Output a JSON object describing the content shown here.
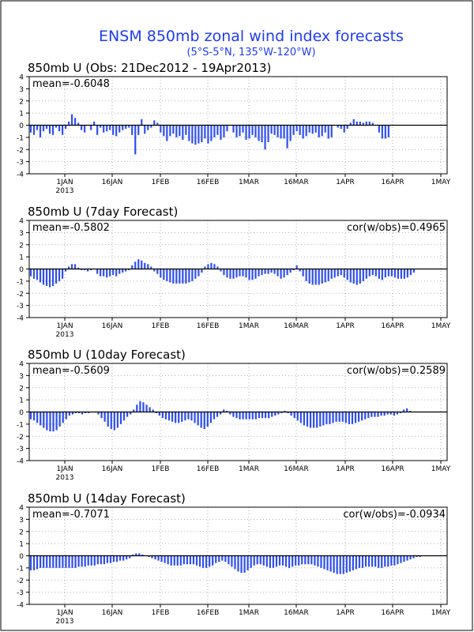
{
  "header": {
    "title": "ENSM 850mb zonal wind index forecasts",
    "subtitle": "(5°S-5°N, 135°W-120°W)"
  },
  "colors": {
    "bar": "#2f4ff0",
    "title": "#1f3cf0",
    "grid": "#9a9a9a",
    "frame": "#000000"
  },
  "x_ticks": [
    "1JAN",
    "16JAN",
    "1FEB",
    "16FEB",
    "1MAR",
    "16MAR",
    "1APR",
    "16APR",
    "1MAY"
  ],
  "x_year_label": "2013",
  "chart_data": [
    {
      "type": "bar",
      "title": "850mb U (Obs: 21Dec2012 - 19Apr2013)",
      "mean_text": "mean=-0.6048",
      "cor_text": "",
      "ylim": [
        -4,
        4
      ],
      "y_ticks": [
        "4",
        "3",
        "2",
        "1",
        "0",
        "-1",
        "-2",
        "-3",
        "-4"
      ],
      "x_start": "21Dec2012",
      "x_end": "1May2013",
      "grid": true,
      "values": [
        -0.6,
        -0.8,
        -0.4,
        -1.0,
        -0.5,
        -0.3,
        -0.7,
        -0.8,
        -0.2,
        -0.5,
        -0.8,
        -0.3,
        0.3,
        0.9,
        0.6,
        0.2,
        -0.4,
        -0.6,
        0.0,
        -0.4,
        0.3,
        -0.8,
        -0.2,
        -0.6,
        -0.5,
        -0.4,
        -0.8,
        -0.9,
        -0.6,
        -0.4,
        -0.3,
        -0.2,
        -0.8,
        -2.4,
        -0.8,
        0.5,
        -0.7,
        -0.4,
        -0.2,
        0.4,
        0.2,
        -0.6,
        -0.9,
        -1.3,
        -0.9,
        -0.7,
        -1.0,
        -0.9,
        -1.2,
        -0.8,
        -1.3,
        -1.5,
        -1.6,
        -1.5,
        -1.4,
        -1.1,
        -1.5,
        -1.3,
        -1.0,
        -0.8,
        -1.2,
        -1.0,
        -0.5,
        0.0,
        -0.6,
        -1.0,
        -0.9,
        -0.6,
        -1.2,
        -1.1,
        -0.8,
        -1.0,
        -1.3,
        -1.4,
        -2.0,
        -1.4,
        -0.7,
        -0.8,
        -1.0,
        -1.1,
        -1.1,
        -1.9,
        -1.3,
        -0.8,
        -0.5,
        -0.8,
        -1.1,
        -0.9,
        -0.6,
        -0.7,
        -0.6,
        -1.0,
        -0.9,
        -0.6,
        -1.1,
        -1.0,
        0.0,
        -0.2,
        -0.3,
        -0.6,
        -0.3,
        0.2,
        0.5,
        0.3,
        0.3,
        0.2,
        0.3,
        0.3,
        0.2,
        0.0,
        -0.6,
        -1.1,
        -1.1,
        -1.0,
        0.0,
        0.0,
        0.0,
        0.0,
        0.0,
        0.0,
        0.0,
        0.0,
        0.0,
        0.0,
        0.0,
        0.0,
        0.0,
        0.0,
        0.0,
        0.0,
        0.0,
        0.0
      ]
    },
    {
      "type": "bar",
      "title": "850mb U (7day Forecast)",
      "mean_text": "mean=-0.5802",
      "cor_text": "cor(w/obs)=0.4965",
      "ylim": [
        -4,
        4
      ],
      "y_ticks": [
        "4",
        "3",
        "2",
        "1",
        "0",
        "-1",
        "-2",
        "-3",
        "-4"
      ],
      "x_start": "21Dec2012",
      "x_end": "1May2013",
      "grid": true,
      "values": [
        -0.6,
        -0.8,
        -0.9,
        -1.1,
        -1.3,
        -1.4,
        -1.5,
        -1.4,
        -1.2,
        -1.0,
        -0.8,
        -0.2,
        0.2,
        0.4,
        0.4,
        0.1,
        -0.1,
        -0.1,
        -0.2,
        -0.1,
        0.0,
        -0.4,
        -0.6,
        -0.6,
        -0.7,
        -0.6,
        -0.5,
        -0.6,
        -0.4,
        -0.3,
        -0.2,
        -0.1,
        0.3,
        0.6,
        0.8,
        0.7,
        0.5,
        0.4,
        0.2,
        -0.2,
        -0.4,
        -0.7,
        -0.9,
        -1.0,
        -1.1,
        -1.2,
        -1.2,
        -1.2,
        -1.2,
        -1.2,
        -1.1,
        -1.0,
        -0.8,
        -0.6,
        -0.3,
        0.2,
        0.4,
        0.5,
        0.4,
        0.2,
        -0.2,
        -0.5,
        -0.7,
        -0.8,
        -0.8,
        -0.7,
        -0.6,
        -0.6,
        -0.7,
        -0.9,
        -0.9,
        -0.8,
        -0.6,
        -0.5,
        -0.4,
        -0.4,
        -0.3,
        -0.4,
        -0.6,
        -0.8,
        -0.7,
        -0.5,
        -0.3,
        -0.1,
        0.3,
        -0.2,
        -0.6,
        -1.0,
        -1.2,
        -1.3,
        -1.3,
        -1.3,
        -1.2,
        -1.1,
        -1.0,
        -0.8,
        -0.7,
        -0.6,
        -0.5,
        -0.7,
        -0.9,
        -1.1,
        -1.2,
        -1.3,
        -1.2,
        -1.0,
        -0.8,
        -0.6,
        -0.5,
        -0.6,
        -0.8,
        -0.9,
        -0.7,
        -0.6,
        -0.6,
        -0.7,
        -0.8,
        -0.8,
        -0.8,
        -0.7,
        -0.5,
        -0.3,
        0.0,
        0.0,
        0.0,
        0.0,
        0.0,
        0.0,
        0.0,
        0.0,
        0.0,
        0.0
      ]
    },
    {
      "type": "bar",
      "title": "850mb U (10day Forecast)",
      "mean_text": "mean=-0.5609",
      "cor_text": "cor(w/obs)=0.2589",
      "ylim": [
        -4,
        4
      ],
      "y_ticks": [
        "4",
        "3",
        "2",
        "1",
        "0",
        "-1",
        "-2",
        "-3",
        "-4"
      ],
      "x_start": "21Dec2012",
      "x_end": "1May2013",
      "grid": true,
      "values": [
        -0.6,
        -0.7,
        -0.9,
        -1.1,
        -1.3,
        -1.5,
        -1.6,
        -1.6,
        -1.5,
        -1.2,
        -0.9,
        -0.6,
        -0.3,
        -0.2,
        -0.1,
        -0.1,
        -0.2,
        -0.1,
        -0.1,
        0.0,
        0.0,
        -0.2,
        -0.5,
        -0.8,
        -1.2,
        -1.4,
        -1.5,
        -1.3,
        -1.0,
        -0.7,
        -0.4,
        -0.2,
        0.2,
        0.6,
        0.9,
        0.8,
        0.6,
        0.4,
        0.2,
        -0.1,
        -0.3,
        -0.5,
        -0.6,
        -0.7,
        -0.8,
        -0.9,
        -0.9,
        -0.8,
        -0.7,
        -0.6,
        -0.7,
        -0.9,
        -1.1,
        -1.3,
        -1.4,
        -1.2,
        -0.9,
        -0.6,
        -0.4,
        -0.2,
        0.2,
        0.1,
        -0.2,
        -0.4,
        -0.5,
        -0.6,
        -0.6,
        -0.6,
        -0.6,
        -0.6,
        -0.6,
        -0.5,
        -0.5,
        -0.5,
        -0.5,
        -0.4,
        -0.3,
        -0.2,
        -0.1,
        0.1,
        -0.1,
        -0.3,
        -0.5,
        -0.7,
        -0.9,
        -1.1,
        -1.2,
        -1.3,
        -1.3,
        -1.3,
        -1.2,
        -1.1,
        -1.0,
        -1.0,
        -0.9,
        -0.8,
        -0.8,
        -0.8,
        -0.9,
        -1.0,
        -1.0,
        -0.9,
        -0.8,
        -0.7,
        -0.6,
        -0.5,
        -0.4,
        -0.4,
        -0.4,
        -0.3,
        -0.3,
        -0.2,
        -0.2,
        -0.3,
        -0.2,
        -0.1,
        0.2,
        0.3,
        0.1,
        0.0,
        0.0,
        0.0,
        0.0,
        0.0,
        0.0,
        0.0,
        0.0,
        0.0,
        0.0,
        0.0
      ]
    },
    {
      "type": "bar",
      "title": "850mb U (14day Forecast)",
      "mean_text": "mean=-0.7071",
      "cor_text": "cor(w/obs)=-0.0934",
      "ylim": [
        -4,
        4
      ],
      "y_ticks": [
        "4",
        "3",
        "2",
        "1",
        "0",
        "-1",
        "-2",
        "-3",
        "-4"
      ],
      "x_start": "21Dec2012",
      "x_end": "1May2013",
      "grid": true,
      "values": [
        -1.2,
        -1.2,
        -1.1,
        -1.0,
        -1.0,
        -1.0,
        -1.0,
        -1.0,
        -1.0,
        -1.0,
        -1.0,
        -1.0,
        -1.0,
        -1.0,
        -1.0,
        -0.9,
        -0.9,
        -0.9,
        -0.8,
        -0.8,
        -0.8,
        -0.7,
        -0.7,
        -0.7,
        -0.6,
        -0.6,
        -0.5,
        -0.5,
        -0.4,
        -0.4,
        -0.3,
        -0.2,
        0.1,
        0.2,
        0.2,
        0.1,
        0.0,
        -0.1,
        -0.2,
        -0.3,
        -0.4,
        -0.5,
        -0.6,
        -0.7,
        -0.8,
        -0.8,
        -0.8,
        -0.8,
        -0.7,
        -0.7,
        -0.7,
        -0.7,
        -0.8,
        -0.9,
        -1.0,
        -1.0,
        -0.9,
        -0.8,
        -0.6,
        -0.5,
        -0.4,
        -0.5,
        -0.7,
        -0.9,
        -1.1,
        -1.3,
        -1.4,
        -1.4,
        -1.2,
        -1.0,
        -0.8,
        -0.7,
        -0.7,
        -0.8,
        -0.9,
        -1.0,
        -1.0,
        -0.9,
        -0.8,
        -0.8,
        -0.9,
        -1.0,
        -0.9,
        -0.8,
        -0.8,
        -0.7,
        -0.7,
        -0.7,
        -0.7,
        -0.8,
        -0.9,
        -1.0,
        -1.1,
        -1.2,
        -1.3,
        -1.4,
        -1.5,
        -1.5,
        -1.5,
        -1.4,
        -1.3,
        -1.2,
        -1.1,
        -1.0,
        -1.0,
        -0.9,
        -0.9,
        -0.9,
        -0.9,
        -1.0,
        -1.0,
        -0.9,
        -0.9,
        -0.8,
        -0.8,
        -0.7,
        -0.6,
        -0.5,
        -0.4,
        -0.3,
        -0.2,
        -0.1,
        -0.1,
        0.0,
        0.0,
        0.0,
        0.0,
        0.0,
        0.0,
        0.0,
        0.0
      ]
    }
  ]
}
